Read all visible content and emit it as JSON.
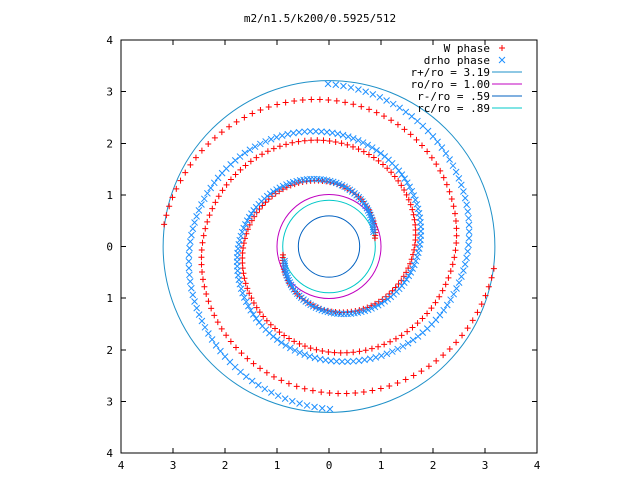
{
  "chart_data": {
    "type": "scatter",
    "title": "m2/n1.5/k200/0.5925/512",
    "xlim": [
      -4,
      4
    ],
    "ylim": [
      -4,
      4
    ],
    "x_ticks": [
      {
        "value": -4,
        "label": "4"
      },
      {
        "value": -3,
        "label": "3"
      },
      {
        "value": -2,
        "label": "2"
      },
      {
        "value": -1,
        "label": "1"
      },
      {
        "value": 0,
        "label": "0"
      },
      {
        "value": 1,
        "label": "1"
      },
      {
        "value": 2,
        "label": "2"
      },
      {
        "value": 3,
        "label": "3"
      },
      {
        "value": 4,
        "label": "4"
      }
    ],
    "y_ticks": [
      {
        "value": 4,
        "label": "4"
      },
      {
        "value": 3,
        "label": "3"
      },
      {
        "value": 2,
        "label": "2"
      },
      {
        "value": 1,
        "label": "1"
      },
      {
        "value": 0,
        "label": "0"
      },
      {
        "value": -1,
        "label": "1"
      },
      {
        "value": -2,
        "label": "2"
      },
      {
        "value": -3,
        "label": "3"
      },
      {
        "value": -4,
        "label": "4"
      }
    ],
    "grid": false,
    "legend_position": "top-right",
    "series": [
      {
        "name": "W phase",
        "kind": "points",
        "marker": "plus",
        "color": "#ff0000",
        "spiral": {
          "r_start": 0.9,
          "r_end": 3.2,
          "turns": 1.45,
          "arms": 2,
          "points_per_arm": 160
        }
      },
      {
        "name": "drho phase",
        "kind": "points",
        "marker": "cross",
        "color": "#1e90ff",
        "spiral": {
          "r_start": 0.9,
          "r_end": 3.15,
          "turns": 1.2,
          "arms": 2,
          "points_per_arm": 160
        }
      },
      {
        "name": "r+/ro = 3.19",
        "kind": "circle",
        "radius": 3.19,
        "color": "#1e90c8"
      },
      {
        "name": "ro/ro = 1.00",
        "kind": "circle",
        "radius": 1.0,
        "color": "#c000c0"
      },
      {
        "name": "r-/ro = .59",
        "kind": "circle",
        "radius": 0.59,
        "color": "#0060c0"
      },
      {
        "name": "rc/ro = .89",
        "kind": "circle",
        "radius": 0.89,
        "color": "#00c8c8"
      }
    ]
  }
}
